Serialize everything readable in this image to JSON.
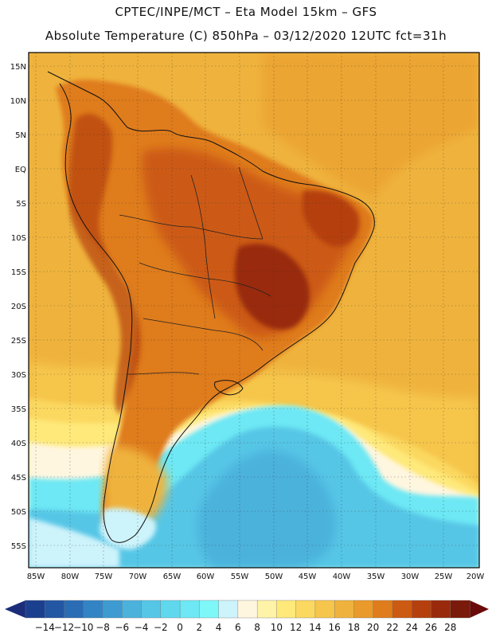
{
  "header": {
    "line1": "CPTEC/INPE/MCT –  Eta Model 15km – GFS",
    "line2": "Absolute Temperature (C) 850hPa – 03/12/2020 12UTC fct=31h"
  },
  "axes": {
    "lat_labels": [
      "15N",
      "10N",
      "5N",
      "EQ",
      "5S",
      "10S",
      "15S",
      "20S",
      "25S",
      "30S",
      "35S",
      "40S",
      "45S",
      "50S",
      "55S"
    ],
    "lon_labels": [
      "85W",
      "80W",
      "75W",
      "70W",
      "65W",
      "60W",
      "55W",
      "50W",
      "45W",
      "40W",
      "35W",
      "30W",
      "25W",
      "20W"
    ]
  },
  "colorbar": {
    "labels": [
      "-14",
      "-12",
      "-10",
      "-8",
      "-6",
      "-4",
      "-2",
      "0",
      "2",
      "4",
      "6",
      "8",
      "10",
      "12",
      "14",
      "16",
      "18",
      "20",
      "22",
      "24",
      "26",
      "28"
    ],
    "colors": [
      "#1b3f8f",
      "#2356a3",
      "#2a6db5",
      "#3384c4",
      "#3d9bd1",
      "#4bb2dc",
      "#56c6e6",
      "#5fd8ee",
      "#6de8f4",
      "#7ef7f9",
      "#cdf3fb",
      "#fff6e0",
      "#fff3a8",
      "#fee97a",
      "#fbd860",
      "#f6c64c",
      "#efb33d",
      "#e99a2a",
      "#df7c1c",
      "#cc5a12",
      "#b5400e",
      "#99290b",
      "#7a1a0a"
    ],
    "left_arrow_color": "#1b2d7a",
    "right_arrow_color": "#6b0a0a"
  },
  "colors": {
    "ocean_north": "#efb33d",
    "land_hot": "#df7c1c",
    "land_very_hot": "#b5400e",
    "cold_ocean": "#5fd8ee"
  }
}
